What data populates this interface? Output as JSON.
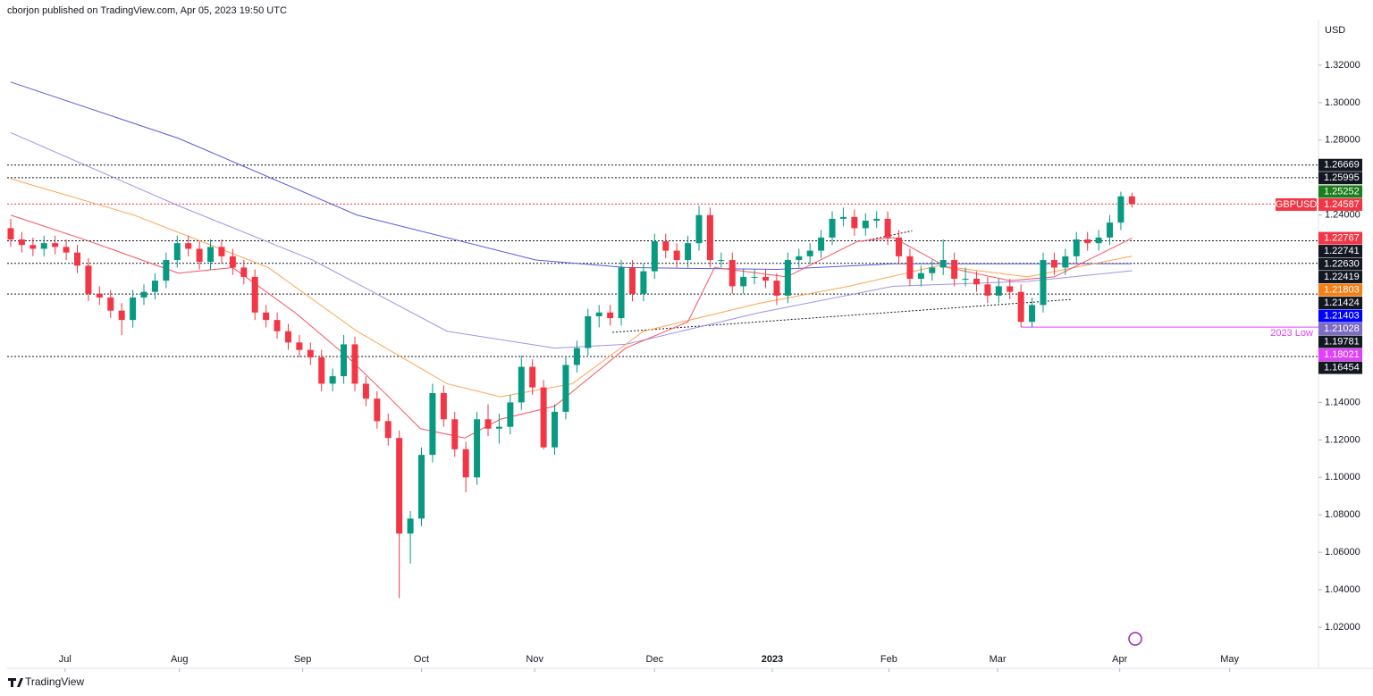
{
  "chart_data": {
    "type": "candlestick",
    "header": "cborjon published on TradingView.com, Apr 05, 2023 19:50 UTC",
    "footer": "TradingView",
    "currency": "USD",
    "symbol": "GBPUSD",
    "up_color": "#089981",
    "down_color": "#f23645",
    "xlim": [
      -0.32,
      117.8
    ],
    "ylim": [
      1.0081,
      1.3443
    ],
    "xticks": [
      {
        "value": 4.9,
        "label": "Jul"
      },
      {
        "value": 15.2,
        "label": "Aug"
      },
      {
        "value": 26.3,
        "label": "Sep"
      },
      {
        "value": 37.0,
        "label": "Oct"
      },
      {
        "value": 47.2,
        "label": "Nov"
      },
      {
        "value": 58.0,
        "label": "Dec"
      },
      {
        "value": 68.6,
        "label": "2023"
      },
      {
        "value": 79.1,
        "label": "Feb"
      },
      {
        "value": 88.9,
        "label": "Mar"
      },
      {
        "value": 99.9,
        "label": "Apr"
      },
      {
        "value": 109.8,
        "label": "May"
      }
    ],
    "yticks": [
      {
        "value": 1.02,
        "label": "1.02000"
      },
      {
        "value": 1.04,
        "label": "1.04000"
      },
      {
        "value": 1.06,
        "label": "1.06000"
      },
      {
        "value": 1.08,
        "label": "1.08000"
      },
      {
        "value": 1.1,
        "label": "1.10000"
      },
      {
        "value": 1.12,
        "label": "1.12000"
      },
      {
        "value": 1.14,
        "label": "1.14000"
      },
      {
        "value": 1.24,
        "label": "1.24000"
      },
      {
        "value": 1.28,
        "label": "1.28000"
      },
      {
        "value": 1.3,
        "label": "1.30000"
      },
      {
        "value": 1.32,
        "label": "1.32000"
      }
    ],
    "candles": [
      [
        1.233,
        1.238,
        1.223,
        1.227
      ],
      [
        1.227,
        1.231,
        1.22,
        1.224
      ],
      [
        1.224,
        1.228,
        1.218,
        1.222
      ],
      [
        1.222,
        1.229,
        1.218,
        1.225
      ],
      [
        1.225,
        1.229,
        1.219,
        1.223
      ],
      [
        1.223,
        1.227,
        1.216,
        1.22
      ],
      [
        1.22,
        1.224,
        1.209,
        1.213
      ],
      [
        1.213,
        1.217,
        1.194,
        1.198
      ],
      [
        1.198,
        1.202,
        1.192,
        1.196
      ],
      [
        1.196,
        1.2,
        1.185,
        1.189
      ],
      [
        1.189,
        1.193,
        1.176,
        1.184
      ],
      [
        1.184,
        1.2,
        1.18,
        1.196
      ],
      [
        1.196,
        1.203,
        1.192,
        1.199
      ],
      [
        1.199,
        1.209,
        1.195,
        1.205
      ],
      [
        1.205,
        1.22,
        1.201,
        1.216
      ],
      [
        1.216,
        1.229,
        1.212,
        1.225
      ],
      [
        1.225,
        1.229,
        1.218,
        1.222
      ],
      [
        1.222,
        1.226,
        1.211,
        1.215
      ],
      [
        1.215,
        1.227,
        1.211,
        1.223
      ],
      [
        1.223,
        1.227,
        1.214,
        1.218
      ],
      [
        1.218,
        1.222,
        1.208,
        1.212
      ],
      [
        1.212,
        1.216,
        1.203,
        1.207
      ],
      [
        1.207,
        1.211,
        1.184,
        1.188
      ],
      [
        1.188,
        1.192,
        1.18,
        1.184
      ],
      [
        1.184,
        1.188,
        1.174,
        1.178
      ],
      [
        1.178,
        1.182,
        1.168,
        1.172
      ],
      [
        1.172,
        1.176,
        1.164,
        1.168
      ],
      [
        1.168,
        1.172,
        1.16,
        1.164
      ],
      [
        1.164,
        1.168,
        1.146,
        1.15
      ],
      [
        1.15,
        1.158,
        1.146,
        1.154
      ],
      [
        1.154,
        1.176,
        1.15,
        1.171
      ],
      [
        1.171,
        1.175,
        1.146,
        1.15
      ],
      [
        1.15,
        1.154,
        1.138,
        1.142
      ],
      [
        1.142,
        1.146,
        1.126,
        1.13
      ],
      [
        1.13,
        1.134,
        1.117,
        1.121
      ],
      [
        1.121,
        1.125,
        1.0356,
        1.07
      ],
      [
        1.07,
        1.082,
        1.054,
        1.078
      ],
      [
        1.078,
        1.116,
        1.074,
        1.112
      ],
      [
        1.112,
        1.15,
        1.108,
        1.145
      ],
      [
        1.145,
        1.149,
        1.127,
        1.131
      ],
      [
        1.131,
        1.135,
        1.111,
        1.115
      ],
      [
        1.115,
        1.119,
        1.092,
        1.1
      ],
      [
        1.1,
        1.135,
        1.096,
        1.131
      ],
      [
        1.131,
        1.139,
        1.122,
        1.126
      ],
      [
        1.126,
        1.134,
        1.118,
        1.127
      ],
      [
        1.127,
        1.144,
        1.123,
        1.14
      ],
      [
        1.14,
        1.165,
        1.136,
        1.159
      ],
      [
        1.159,
        1.163,
        1.144,
        1.148
      ],
      [
        1.148,
        1.152,
        1.115,
        1.116
      ],
      [
        1.116,
        1.139,
        1.112,
        1.135
      ],
      [
        1.135,
        1.164,
        1.131,
        1.16
      ],
      [
        1.16,
        1.173,
        1.156,
        1.169
      ],
      [
        1.169,
        1.19,
        1.165,
        1.186
      ],
      [
        1.186,
        1.192,
        1.18,
        1.188
      ],
      [
        1.188,
        1.192,
        1.181,
        1.185
      ],
      [
        1.185,
        1.216,
        1.181,
        1.212
      ],
      [
        1.212,
        1.216,
        1.194,
        1.198
      ],
      [
        1.198,
        1.214,
        1.194,
        1.21
      ],
      [
        1.21,
        1.23,
        1.206,
        1.226
      ],
      [
        1.226,
        1.23,
        1.217,
        1.221
      ],
      [
        1.221,
        1.225,
        1.212,
        1.216
      ],
      [
        1.216,
        1.229,
        1.212,
        1.225
      ],
      [
        1.225,
        1.245,
        1.221,
        1.24
      ],
      [
        1.24,
        1.244,
        1.212,
        1.216
      ],
      [
        1.216,
        1.22,
        1.212,
        1.216
      ],
      [
        1.216,
        1.22,
        1.198,
        1.202
      ],
      [
        1.202,
        1.211,
        1.198,
        1.207
      ],
      [
        1.207,
        1.211,
        1.203,
        1.207
      ],
      [
        1.207,
        1.211,
        1.201,
        1.205
      ],
      [
        1.205,
        1.209,
        1.192,
        1.197
      ],
      [
        1.197,
        1.22,
        1.193,
        1.216
      ],
      [
        1.216,
        1.222,
        1.212,
        1.218
      ],
      [
        1.218,
        1.225,
        1.214,
        1.221
      ],
      [
        1.221,
        1.232,
        1.217,
        1.228
      ],
      [
        1.228,
        1.242,
        1.224,
        1.238
      ],
      [
        1.238,
        1.244,
        1.234,
        1.239
      ],
      [
        1.239,
        1.243,
        1.229,
        1.233
      ],
      [
        1.233,
        1.241,
        1.229,
        1.237
      ],
      [
        1.237,
        1.242,
        1.233,
        1.238
      ],
      [
        1.238,
        1.242,
        1.224,
        1.228
      ],
      [
        1.228,
        1.232,
        1.214,
        1.218
      ],
      [
        1.218,
        1.222,
        1.202,
        1.206
      ],
      [
        1.206,
        1.213,
        1.202,
        1.209
      ],
      [
        1.209,
        1.216,
        1.205,
        1.212
      ],
      [
        1.212,
        1.227,
        1.208,
        1.216
      ],
      [
        1.216,
        1.22,
        1.202,
        1.206
      ],
      [
        1.206,
        1.212,
        1.202,
        1.206
      ],
      [
        1.206,
        1.21,
        1.199,
        1.203
      ],
      [
        1.203,
        1.207,
        1.193,
        1.197
      ],
      [
        1.197,
        1.206,
        1.193,
        1.202
      ],
      [
        1.202,
        1.206,
        1.195,
        1.199
      ],
      [
        1.199,
        1.203,
        1.1802,
        1.183
      ],
      [
        1.183,
        1.196,
        1.1802,
        1.192
      ],
      [
        1.192,
        1.22,
        1.188,
        1.216
      ],
      [
        1.216,
        1.22,
        1.208,
        1.212
      ],
      [
        1.212,
        1.222,
        1.208,
        1.218
      ],
      [
        1.218,
        1.231,
        1.214,
        1.227
      ],
      [
        1.227,
        1.231,
        1.221,
        1.225
      ],
      [
        1.225,
        1.232,
        1.221,
        1.228
      ],
      [
        1.228,
        1.24,
        1.224,
        1.236
      ],
      [
        1.236,
        1.2525,
        1.232,
        1.25
      ],
      [
        1.25,
        1.252,
        1.244,
        1.24587
      ]
    ],
    "series": [
      {
        "color": "#5b5bd9",
        "x": [
          0,
          15.1,
          31.2,
          47.3,
          55.4,
          69.1,
          79.5,
          101
        ],
        "values": [
          1.311,
          1.281,
          1.24,
          1.216,
          1.212,
          1.211,
          1.214,
          1.21403
        ]
      },
      {
        "color": "#a093e8",
        "x": [
          0,
          15.1,
          27.2,
          39.3,
          49,
          55.4,
          67.5,
          79.5,
          91.6,
          101
        ],
        "values": [
          1.284,
          1.245,
          1.216,
          1.178,
          1.169,
          1.171,
          1.188,
          1.202,
          1.2046,
          1.21028
        ]
      },
      {
        "color": "#ffa44f",
        "x": [
          0,
          11.1,
          23.2,
          31.2,
          39.3,
          44.1,
          50.6,
          57,
          67.5,
          75.5,
          83.6,
          91.6,
          101
        ],
        "values": [
          1.2594,
          1.24,
          1.212,
          1.178,
          1.15,
          1.143,
          1.15,
          1.178,
          1.193,
          1.202,
          1.213,
          1.207,
          1.21803
        ]
      },
      {
        "color": "#f7525f",
        "x": [
          0,
          7.1,
          15.1,
          20,
          25.6,
          30.4,
          33.7,
          36.9,
          40.9,
          44.1,
          49,
          55.4,
          61,
          63.4,
          69.9,
          76.3,
          79.5,
          84.4,
          90,
          94,
          101
        ],
        "values": [
          1.24,
          1.226,
          1.209,
          1.212,
          1.188,
          1.164,
          1.145,
          1.126,
          1.121,
          1.131,
          1.138,
          1.169,
          1.183,
          1.212,
          1.207,
          1.226,
          1.228,
          1.212,
          1.205,
          1.207,
          1.22767
        ]
      }
    ],
    "trendlines": [
      {
        "x": [
          54.2,
          95.6
        ],
        "values": [
          1.1774,
          1.195
        ]
      },
      {
        "x": [
          76.7,
          81.2
        ],
        "values": [
          1.226,
          1.2316
        ]
      }
    ],
    "levels": [
      {
        "value": 1.26669,
        "label": "1.26669",
        "color": "#131722",
        "line": true
      },
      {
        "value": 1.25995,
        "label": "1.25995",
        "color": "#131722",
        "line": true
      },
      {
        "value": 1.25252,
        "label": "1.25252",
        "color": "#1b7d1b",
        "line": false
      },
      {
        "value": 1.24587,
        "label": "1.24587",
        "color": "#f23645",
        "line": true
      },
      {
        "value": 1.22767,
        "label": "1.22767",
        "color": "#f23645",
        "line": false
      },
      {
        "value": 1.22741,
        "label": "1.22741",
        "color": "#131722",
        "line": false
      },
      {
        "value": 1.2263,
        "label": "1.22630",
        "color": "#131722",
        "line": true
      },
      {
        "value": 1.22419,
        "label": "1.22419",
        "color": "#131722",
        "line": false
      },
      {
        "value": 1.21803,
        "label": "1.21803",
        "color": "#f57f17",
        "line": false
      },
      {
        "value": 1.21424,
        "label": "1.21424",
        "color": "#131722",
        "line": true
      },
      {
        "value": 1.21403,
        "label": "1.21403",
        "color": "#0000ff",
        "line": false
      },
      {
        "value": 1.21028,
        "label": "1.21028",
        "color": "#7e6bc4",
        "line": false
      },
      {
        "value": 1.19781,
        "label": "1.19781",
        "color": "#131722",
        "line": true
      },
      {
        "value": 1.18021,
        "label": "1.18021",
        "color": "#e040fb",
        "line": false
      },
      {
        "value": 1.16454,
        "label": "1.16454",
        "color": "#131722",
        "line": true
      }
    ],
    "annotation": {
      "text": "2023 Low",
      "value": 1.18021,
      "x": 91,
      "color": "#e040fb"
    }
  }
}
